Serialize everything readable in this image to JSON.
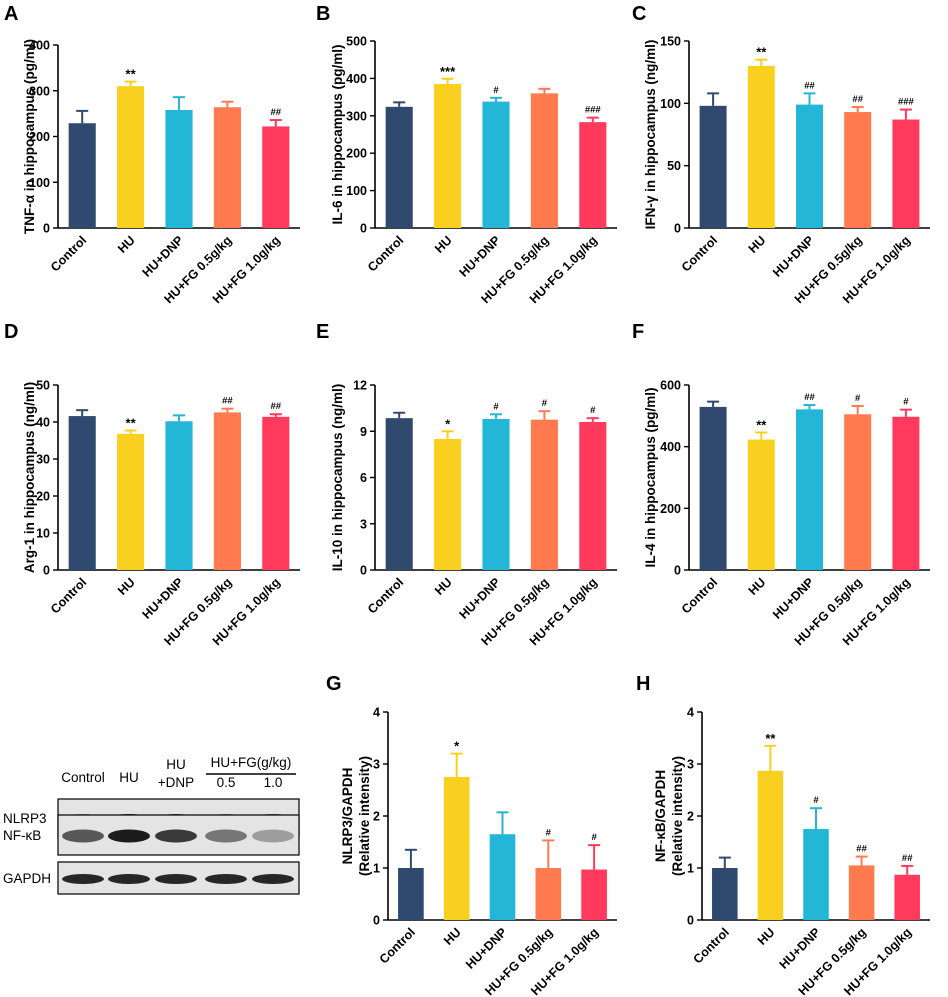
{
  "figure": {
    "colors": [
      "#2f4a6e",
      "#f9d01f",
      "#24b6d6",
      "#ff7a4f",
      "#ff3a5c"
    ],
    "blot": {
      "panel_letter": "",
      "col_labels": [
        "Control",
        "HU",
        "HU",
        "+DNP",
        "HU+FG(g/kg)",
        "0.5",
        "1.0"
      ],
      "row_labels": [
        "NLRP3",
        "NF-κB",
        "GAPDH"
      ]
    }
  },
  "chart_data": [
    {
      "panel": "A",
      "type": "bar",
      "ylabel": "TNF-α in hippocampus (pg/ml)",
      "categories": [
        "Control",
        "HU",
        "HU+DNP",
        "HU+FG 0.5g/kg",
        "HU+FG 1.0g/kg"
      ],
      "values": [
        229,
        310,
        258,
        264,
        222
      ],
      "errors": [
        27,
        10,
        28,
        12,
        14
      ],
      "annotations": [
        "",
        "**",
        "",
        "",
        "##"
      ],
      "ylim": [
        0,
        400
      ],
      "yticks": [
        0,
        100,
        200,
        300,
        400
      ],
      "ytick_labels": [
        "0",
        "100",
        "200",
        "300",
        "400"
      ]
    },
    {
      "panel": "B",
      "type": "bar",
      "ylabel": "IL-6 in hippocampus (pg/ml)",
      "categories": [
        "Control",
        "HU",
        "HU+DNP",
        "HU+FG 0.5g/kg",
        "HU+FG 1.0g/kg"
      ],
      "values": [
        324,
        385,
        338,
        360,
        283
      ],
      "errors": [
        12,
        14,
        10,
        12,
        12
      ],
      "annotations": [
        "",
        "***",
        "#",
        "",
        "###"
      ],
      "ylim": [
        0,
        500
      ],
      "yticks": [
        0,
        100,
        200,
        300,
        400,
        500
      ],
      "ytick_labels": [
        "0",
        "100",
        "200",
        "300",
        "400",
        "500"
      ]
    },
    {
      "panel": "C",
      "type": "bar",
      "ylabel": "IFN-γ in hippocampus (ng/ml)",
      "categories": [
        "Control",
        "HU",
        "HU+DNP",
        "HU+FG 0.5g/kg",
        "HU+FG 1.0g/kg"
      ],
      "values": [
        98,
        130,
        99,
        93,
        87
      ],
      "errors": [
        10,
        5,
        9,
        4,
        8
      ],
      "annotations": [
        "",
        "**",
        "##",
        "##",
        "###"
      ],
      "ylim": [
        0,
        150
      ],
      "yticks": [
        0,
        50,
        100,
        150
      ],
      "ytick_labels": [
        "0",
        "50",
        "100",
        "150"
      ]
    },
    {
      "panel": "D",
      "type": "bar",
      "ylabel": "Arg-1 in hippocampus (ng/ml)",
      "categories": [
        "Control",
        "HU",
        "HU+DNP",
        "HU+FG 0.5g/kg",
        "HU+FG 1.0g/kg"
      ],
      "values": [
        41.6,
        36.8,
        40.2,
        42.6,
        41.4
      ],
      "errors": [
        1.6,
        0.9,
        1.6,
        1.0,
        0.7
      ],
      "annotations": [
        "",
        "**",
        "",
        "##",
        "##"
      ],
      "ylim": [
        0,
        50
      ],
      "yticks": [
        0,
        10,
        20,
        30,
        40,
        50
      ],
      "ytick_labels": [
        "0",
        "10",
        "20",
        "30",
        "40",
        "50"
      ]
    },
    {
      "panel": "E",
      "type": "bar",
      "ylabel": "IL-10 in hippocampus (ng/ml)",
      "categories": [
        "Control",
        "HU",
        "HU+DNP",
        "HU+FG 0.5g/kg",
        "HU+FG 1.0g/kg"
      ],
      "values": [
        9.85,
        8.5,
        9.8,
        9.75,
        9.6
      ],
      "errors": [
        0.35,
        0.5,
        0.3,
        0.55,
        0.25
      ],
      "annotations": [
        "",
        "*",
        "#",
        "#",
        "#"
      ],
      "ylim": [
        0,
        12
      ],
      "yticks": [
        0,
        3,
        6,
        9,
        12
      ],
      "ytick_labels": [
        "0",
        "3",
        "6",
        "9",
        "12"
      ]
    },
    {
      "panel": "F",
      "type": "bar",
      "ylabel": "IL-4 in hippocampus (pg/ml)",
      "categories": [
        "Control",
        "HU",
        "HU+DNP",
        "HU+FG 0.5g/kg",
        "HU+FG 1.0g/kg"
      ],
      "values": [
        529,
        423,
        521,
        505,
        497
      ],
      "errors": [
        17,
        23,
        14,
        27,
        23
      ],
      "annotations": [
        "",
        "**",
        "##",
        "#",
        "#"
      ],
      "ylim": [
        0,
        600
      ],
      "yticks": [
        0,
        200,
        400,
        600
      ],
      "ytick_labels": [
        "0",
        "200",
        "400",
        "600"
      ]
    },
    {
      "panel": "G",
      "type": "bar",
      "ylabel": [
        "NLRP3/GAPDH",
        "(Relative intensity)"
      ],
      "categories": [
        "Control",
        "HU",
        "HU+DNP",
        "HU+FG 0.5g/kg",
        "HU+FG 1.0g/kg"
      ],
      "values": [
        1.0,
        2.75,
        1.65,
        1.0,
        0.97
      ],
      "errors": [
        0.35,
        0.45,
        0.42,
        0.53,
        0.47
      ],
      "annotations": [
        "",
        "*",
        "",
        "#",
        "#"
      ],
      "ylim": [
        0,
        4
      ],
      "yticks": [
        0,
        1,
        2,
        3,
        4
      ],
      "ytick_labels": [
        "0",
        "1",
        "2",
        "3",
        "4"
      ]
    },
    {
      "panel": "H",
      "type": "bar",
      "ylabel": [
        "NF-κB/GAPDH",
        "(Relative intensity)"
      ],
      "categories": [
        "Control",
        "HU",
        "HU+DNP",
        "HU+FG 0.5g/kg",
        "HU+FG 1.0g/kg"
      ],
      "values": [
        1.0,
        2.87,
        1.75,
        1.05,
        0.87
      ],
      "errors": [
        0.2,
        0.48,
        0.4,
        0.17,
        0.17
      ],
      "annotations": [
        "",
        "**",
        "#",
        "##",
        "##"
      ],
      "ylim": [
        0,
        4
      ],
      "yticks": [
        0,
        1,
        2,
        3,
        4
      ],
      "ytick_labels": [
        "0",
        "1",
        "2",
        "3",
        "4"
      ]
    }
  ]
}
